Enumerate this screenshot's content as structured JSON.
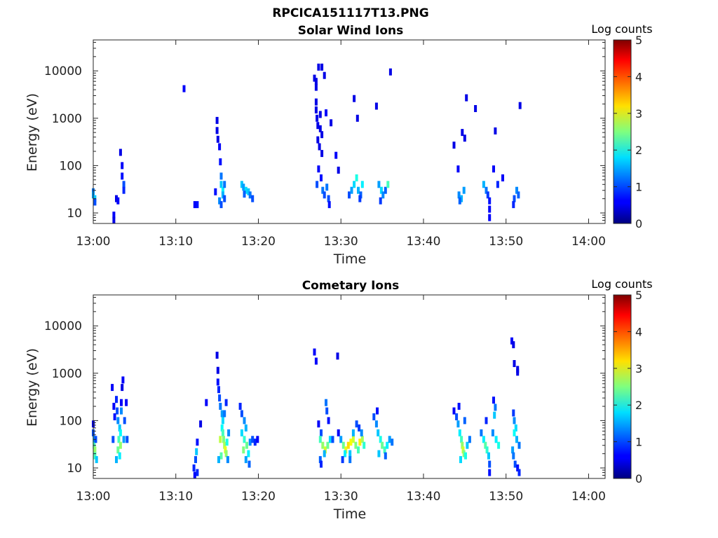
{
  "figure_title": "RPCICA151117T13.PNG",
  "chart_data": [
    {
      "type": "heatmap",
      "title": "Solar Wind Ions",
      "xlabel": "Time",
      "ylabel": "Energy (eV)",
      "x_ticks": [
        "13:00",
        "13:10",
        "13:20",
        "13:30",
        "13:40",
        "13:50",
        "14:00"
      ],
      "y_ticks": [
        "10",
        "100",
        "1000",
        "10000"
      ],
      "y_scale": "log",
      "xlim": [
        "13:00",
        "14:02"
      ],
      "ylim": [
        6,
        45000
      ],
      "colorbar": {
        "label": "Log counts",
        "ticks": [
          "0",
          "1",
          "2",
          "3",
          "4",
          "5"
        ],
        "range": [
          0,
          5
        ],
        "colormap": "jet"
      },
      "points": [
        [
          0.0,
          28,
          1.2
        ],
        [
          0.0,
          24,
          1.4
        ],
        [
          0.2,
          20,
          1.6
        ],
        [
          0.2,
          17,
          1.0
        ],
        [
          2.5,
          9,
          0.6
        ],
        [
          2.5,
          7,
          0.5
        ],
        [
          2.8,
          20,
          0.5
        ],
        [
          3.0,
          18,
          0.6
        ],
        [
          3.3,
          190,
          0.5
        ],
        [
          3.5,
          100,
          0.6
        ],
        [
          3.5,
          60,
          0.7
        ],
        [
          3.7,
          40,
          1.0
        ],
        [
          3.7,
          30,
          0.8
        ],
        [
          11.0,
          4200,
          0.6
        ],
        [
          12.3,
          15,
          0.6
        ],
        [
          12.6,
          15,
          0.7
        ],
        [
          14.8,
          28,
          0.7
        ],
        [
          15.0,
          900,
          0.5
        ],
        [
          15.0,
          550,
          0.5
        ],
        [
          15.1,
          360,
          0.5
        ],
        [
          15.3,
          250,
          0.6
        ],
        [
          15.4,
          120,
          0.7
        ],
        [
          15.5,
          60,
          1.2
        ],
        [
          15.5,
          40,
          1.6
        ],
        [
          15.7,
          30,
          1.8
        ],
        [
          15.7,
          24,
          1.5
        ],
        [
          15.9,
          40,
          1.2
        ],
        [
          15.9,
          20,
          1.0
        ],
        [
          15.3,
          18,
          1.3
        ],
        [
          15.5,
          15,
          1.0
        ],
        [
          18.0,
          40,
          1.6
        ],
        [
          18.2,
          35,
          1.4
        ],
        [
          18.5,
          30,
          1.7
        ],
        [
          18.8,
          28,
          1.6
        ],
        [
          19.0,
          24,
          1.2
        ],
        [
          19.3,
          20,
          1.0
        ],
        [
          18.3,
          25,
          1.1
        ],
        [
          26.8,
          7000,
          0.5
        ],
        [
          27.0,
          6000,
          0.5
        ],
        [
          27.0,
          4500,
          0.5
        ],
        [
          27.3,
          12000,
          0.5
        ],
        [
          27.7,
          12000,
          0.5
        ],
        [
          28.0,
          8000,
          0.5
        ],
        [
          27.0,
          2200,
          0.5
        ],
        [
          27.0,
          1500,
          0.5
        ],
        [
          27.1,
          1000,
          0.5
        ],
        [
          27.5,
          1200,
          0.5
        ],
        [
          27.2,
          700,
          0.5
        ],
        [
          27.5,
          600,
          0.5
        ],
        [
          27.7,
          450,
          0.5
        ],
        [
          27.2,
          350,
          0.5
        ],
        [
          27.4,
          250,
          0.5
        ],
        [
          27.7,
          180,
          0.5
        ],
        [
          28.2,
          1300,
          0.6
        ],
        [
          28.8,
          800,
          0.5
        ],
        [
          27.3,
          85,
          0.6
        ],
        [
          27.6,
          55,
          0.7
        ],
        [
          27.1,
          40,
          1.0
        ],
        [
          27.8,
          30,
          1.2
        ],
        [
          28.0,
          24,
          1.0
        ],
        [
          28.3,
          35,
          1.2
        ],
        [
          28.5,
          20,
          1.0
        ],
        [
          28.6,
          15,
          0.7
        ],
        [
          29.4,
          165,
          0.6
        ],
        [
          29.7,
          80,
          0.5
        ],
        [
          31.0,
          24,
          1.0
        ],
        [
          31.3,
          30,
          1.4
        ],
        [
          31.6,
          40,
          1.7
        ],
        [
          31.9,
          55,
          2.0
        ],
        [
          32.1,
          30,
          1.5
        ],
        [
          32.4,
          24,
          1.1
        ],
        [
          32.0,
          1000,
          0.5
        ],
        [
          31.6,
          2600,
          0.5
        ],
        [
          32.6,
          40,
          1.8
        ],
        [
          32.3,
          20,
          0.9
        ],
        [
          34.3,
          1800,
          0.5
        ],
        [
          34.6,
          40,
          1.4
        ],
        [
          34.9,
          30,
          1.7
        ],
        [
          35.1,
          24,
          1.3
        ],
        [
          35.4,
          30,
          1.1
        ],
        [
          35.7,
          40,
          2.2
        ],
        [
          34.8,
          18,
          0.9
        ],
        [
          36.0,
          9500,
          0.5
        ],
        [
          43.7,
          270,
          0.5
        ],
        [
          44.2,
          85,
          0.6
        ],
        [
          44.7,
          500,
          0.5
        ],
        [
          45.0,
          380,
          0.5
        ],
        [
          45.2,
          2700,
          0.5
        ],
        [
          46.3,
          1600,
          0.5
        ],
        [
          44.3,
          24,
          1.3
        ],
        [
          44.6,
          20,
          1.5
        ],
        [
          44.9,
          30,
          1.4
        ],
        [
          44.4,
          18,
          1.1
        ],
        [
          47.3,
          40,
          1.5
        ],
        [
          47.6,
          30,
          1.2
        ],
        [
          47.8,
          24,
          0.9
        ],
        [
          48.0,
          18,
          0.7
        ],
        [
          48.0,
          12,
          0.6
        ],
        [
          48.0,
          8,
          0.6
        ],
        [
          48.5,
          85,
          0.6
        ],
        [
          48.7,
          540,
          0.5
        ],
        [
          49.0,
          40,
          0.8
        ],
        [
          49.6,
          55,
          0.6
        ],
        [
          51.3,
          30,
          1.3
        ],
        [
          51.0,
          20,
          1.0
        ],
        [
          50.9,
          15,
          0.8
        ],
        [
          51.5,
          24,
          1.1
        ],
        [
          51.7,
          1850,
          0.5
        ]
      ]
    },
    {
      "type": "heatmap",
      "title": "Cometary Ions",
      "xlabel": "Time",
      "ylabel": "Energy (eV)",
      "x_ticks": [
        "13:00",
        "13:10",
        "13:20",
        "13:30",
        "13:40",
        "13:50",
        "14:00"
      ],
      "y_ticks": [
        "10",
        "100",
        "1000",
        "10000"
      ],
      "y_scale": "log",
      "xlim": [
        "13:00",
        "14:02"
      ],
      "ylim": [
        6,
        45000
      ],
      "colorbar": {
        "label": "Log counts",
        "ticks": [
          "0",
          "1",
          "2",
          "3",
          "4",
          "5"
        ],
        "range": [
          0,
          5
        ],
        "colormap": "jet"
      },
      "points": [
        [
          0.0,
          85,
          0.6
        ],
        [
          0.0,
          55,
          1.0
        ],
        [
          0.1,
          40,
          1.4
        ],
        [
          0.1,
          30,
          2.2
        ],
        [
          0.2,
          24,
          2.6
        ],
        [
          0.2,
          18,
          2.2
        ],
        [
          0.3,
          40,
          1.0
        ],
        [
          0.4,
          15,
          1.6
        ],
        [
          2.3,
          500,
          0.6
        ],
        [
          2.5,
          200,
          0.6
        ],
        [
          2.8,
          280,
          0.8
        ],
        [
          2.9,
          160,
          1.0
        ],
        [
          2.6,
          120,
          0.7
        ],
        [
          3.0,
          100,
          1.3
        ],
        [
          3.2,
          70,
          1.6
        ],
        [
          3.3,
          55,
          1.9
        ],
        [
          3.1,
          40,
          2.2
        ],
        [
          3.3,
          30,
          2.6
        ],
        [
          3.0,
          24,
          2.4
        ],
        [
          3.2,
          18,
          1.8
        ],
        [
          3.4,
          240,
          0.6
        ],
        [
          3.6,
          720,
          0.6
        ],
        [
          3.5,
          500,
          0.5
        ],
        [
          3.7,
          40,
          1.4
        ],
        [
          4.1,
          40,
          1.0
        ],
        [
          4.0,
          240,
          0.6
        ],
        [
          3.8,
          100,
          1.0
        ],
        [
          3.4,
          160,
          1.3
        ],
        [
          2.8,
          15,
          1.5
        ],
        [
          2.4,
          40,
          1.0
        ],
        [
          12.2,
          10,
          0.8
        ],
        [
          12.3,
          7,
          0.6
        ],
        [
          12.4,
          15,
          1.0
        ],
        [
          12.5,
          22,
          1.6
        ],
        [
          12.6,
          35,
          0.7
        ],
        [
          12.6,
          8,
          0.8
        ],
        [
          13.0,
          85,
          0.5
        ],
        [
          13.7,
          240,
          0.6
        ],
        [
          15.0,
          2400,
          0.5
        ],
        [
          15.1,
          1150,
          0.5
        ],
        [
          15.1,
          650,
          0.7
        ],
        [
          15.2,
          450,
          0.8
        ],
        [
          15.3,
          300,
          1.0
        ],
        [
          15.4,
          200,
          1.2
        ],
        [
          15.6,
          140,
          1.4
        ],
        [
          15.7,
          100,
          1.7
        ],
        [
          15.6,
          70,
          1.9
        ],
        [
          15.7,
          55,
          2.2
        ],
        [
          15.8,
          40,
          2.5
        ],
        [
          15.9,
          30,
          2.7
        ],
        [
          16.0,
          24,
          3.0
        ],
        [
          16.1,
          20,
          2.6
        ],
        [
          15.5,
          18,
          2.3
        ],
        [
          15.4,
          40,
          2.8
        ],
        [
          16.2,
          35,
          2.0
        ],
        [
          16.4,
          55,
          1.3
        ],
        [
          15.9,
          140,
          1.2
        ],
        [
          16.1,
          240,
          0.8
        ],
        [
          15.2,
          15,
          1.5
        ],
        [
          16.3,
          15,
          1.3
        ],
        [
          17.8,
          200,
          0.8
        ],
        [
          18.0,
          140,
          1.0
        ],
        [
          18.3,
          100,
          1.3
        ],
        [
          18.5,
          70,
          1.5
        ],
        [
          18.0,
          55,
          1.7
        ],
        [
          18.3,
          40,
          2.1
        ],
        [
          18.6,
          30,
          2.4
        ],
        [
          18.2,
          24,
          2.5
        ],
        [
          18.8,
          20,
          1.8
        ],
        [
          19.0,
          35,
          1.3
        ],
        [
          19.3,
          40,
          1.0
        ],
        [
          19.6,
          35,
          0.8
        ],
        [
          19.9,
          40,
          0.6
        ],
        [
          18.5,
          15,
          1.4
        ],
        [
          18.9,
          12,
          1.1
        ],
        [
          26.8,
          2800,
          0.6
        ],
        [
          27.0,
          1800,
          0.6
        ],
        [
          27.3,
          85,
          0.6
        ],
        [
          27.6,
          55,
          1.0
        ],
        [
          27.5,
          40,
          2.2
        ],
        [
          27.8,
          30,
          2.6
        ],
        [
          28.1,
          24,
          2.9
        ],
        [
          28.4,
          30,
          2.4
        ],
        [
          28.7,
          40,
          1.7
        ],
        [
          28.0,
          20,
          1.5
        ],
        [
          27.5,
          15,
          1.1
        ],
        [
          27.6,
          12,
          0.8
        ],
        [
          28.2,
          240,
          1.2
        ],
        [
          28.3,
          160,
          1.0
        ],
        [
          28.5,
          100,
          0.7
        ],
        [
          29.0,
          40,
          1.0
        ],
        [
          29.6,
          2300,
          0.5
        ],
        [
          29.7,
          55,
          0.6
        ],
        [
          30.0,
          40,
          1.4
        ],
        [
          30.3,
          30,
          2.4
        ],
        [
          30.6,
          24,
          3.0
        ],
        [
          30.9,
          30,
          3.3
        ],
        [
          31.2,
          35,
          3.1
        ],
        [
          31.5,
          40,
          2.9
        ],
        [
          31.8,
          30,
          2.5
        ],
        [
          32.1,
          24,
          2.2
        ],
        [
          32.3,
          35,
          3.2
        ],
        [
          32.6,
          40,
          2.7
        ],
        [
          32.8,
          30,
          2.1
        ],
        [
          31.1,
          20,
          1.6
        ],
        [
          30.5,
          20,
          1.8
        ],
        [
          31.5,
          55,
          1.5
        ],
        [
          31.9,
          85,
          1.0
        ],
        [
          32.2,
          70,
          0.9
        ],
        [
          31.1,
          15,
          1.2
        ],
        [
          30.2,
          15,
          0.9
        ],
        [
          32.5,
          55,
          1.3
        ],
        [
          34.0,
          120,
          1.0
        ],
        [
          34.3,
          85,
          1.3
        ],
        [
          34.5,
          55,
          1.6
        ],
        [
          34.8,
          40,
          2.0
        ],
        [
          35.0,
          30,
          2.4
        ],
        [
          35.3,
          24,
          2.2
        ],
        [
          35.6,
          30,
          1.8
        ],
        [
          35.9,
          40,
          1.4
        ],
        [
          36.2,
          35,
          1.2
        ],
        [
          34.6,
          20,
          1.6
        ],
        [
          35.4,
          18,
          1.1
        ],
        [
          34.4,
          160,
          0.7
        ],
        [
          43.7,
          160,
          0.6
        ],
        [
          44.0,
          120,
          1.0
        ],
        [
          44.2,
          85,
          1.4
        ],
        [
          44.4,
          55,
          1.8
        ],
        [
          44.6,
          40,
          2.2
        ],
        [
          44.7,
          30,
          2.6
        ],
        [
          44.8,
          24,
          2.9
        ],
        [
          44.9,
          20,
          2.5
        ],
        [
          45.1,
          18,
          2.0
        ],
        [
          45.3,
          30,
          1.6
        ],
        [
          45.0,
          100,
          1.1
        ],
        [
          44.5,
          15,
          1.7
        ],
        [
          44.3,
          200,
          0.7
        ],
        [
          45.6,
          40,
          1.2
        ],
        [
          47.0,
          55,
          1.2
        ],
        [
          47.3,
          40,
          1.8
        ],
        [
          47.5,
          30,
          2.3
        ],
        [
          47.7,
          24,
          2.1
        ],
        [
          47.9,
          18,
          1.6
        ],
        [
          48.0,
          12,
          1.0
        ],
        [
          48.0,
          8,
          0.7
        ],
        [
          48.4,
          55,
          1.3
        ],
        [
          48.6,
          130,
          1.6
        ],
        [
          48.7,
          190,
          1.2
        ],
        [
          48.5,
          270,
          0.7
        ],
        [
          48.8,
          40,
          1.8
        ],
        [
          49.1,
          30,
          2.0
        ],
        [
          47.6,
          100,
          0.8
        ],
        [
          50.7,
          4800,
          0.6
        ],
        [
          50.9,
          4000,
          0.5
        ],
        [
          51.0,
          1600,
          0.5
        ],
        [
          51.4,
          1200,
          0.5
        ],
        [
          51.4,
          1050,
          0.5
        ],
        [
          50.9,
          145,
          0.9
        ],
        [
          51.0,
          100,
          1.3
        ],
        [
          51.2,
          70,
          1.7
        ],
        [
          51.0,
          55,
          1.9
        ],
        [
          51.3,
          40,
          1.5
        ],
        [
          51.6,
          30,
          1.2
        ],
        [
          50.8,
          24,
          1.4
        ],
        [
          50.9,
          18,
          1.2
        ],
        [
          51.1,
          12,
          1.0
        ],
        [
          51.4,
          10,
          0.7
        ],
        [
          51.6,
          8,
          0.8
        ]
      ]
    }
  ]
}
